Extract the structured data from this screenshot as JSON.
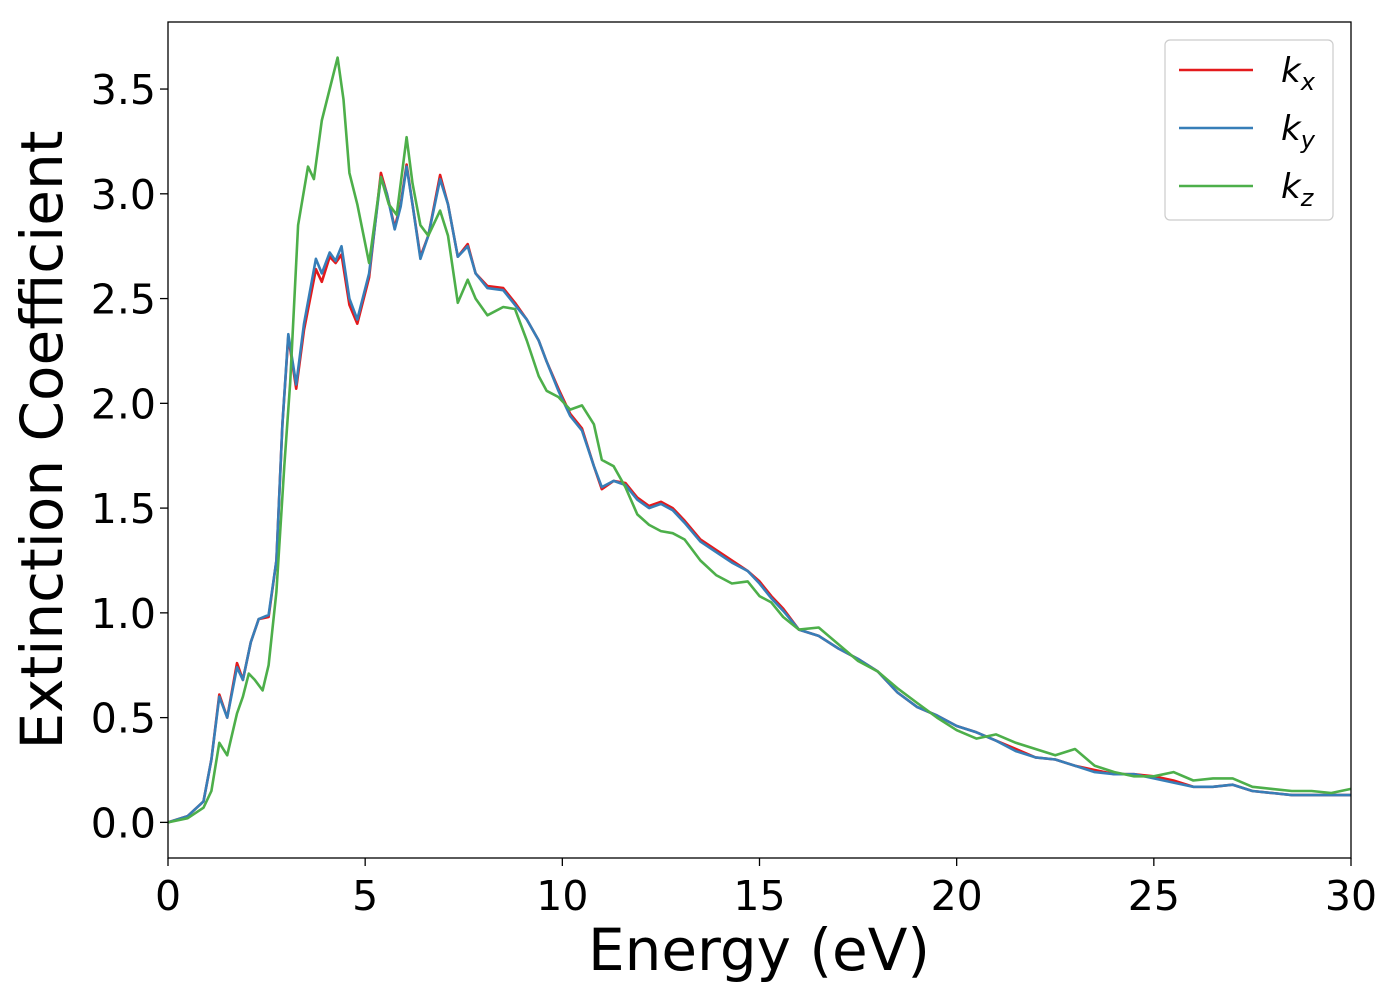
{
  "chart_data": {
    "type": "line",
    "xlabel": "Energy (eV)",
    "ylabel": "Extinction Coefficient",
    "xlim": [
      0,
      30
    ],
    "ylim": [
      -0.17,
      3.82
    ],
    "xticks": [
      0,
      5,
      10,
      15,
      20,
      25,
      30
    ],
    "yticks": [
      0.0,
      0.5,
      1.0,
      1.5,
      2.0,
      2.5,
      3.0,
      3.5
    ],
    "x_tick_labels": [
      "0",
      "5",
      "10",
      "15",
      "20",
      "25",
      "30"
    ],
    "y_tick_labels": [
      "0.0",
      "0.5",
      "1.0",
      "1.5",
      "2.0",
      "2.5",
      "3.0",
      "3.5"
    ],
    "grid": false,
    "legend_position": "top-right",
    "series": [
      {
        "name": "k_x",
        "label_base": "k",
        "label_sub": "x",
        "color": "#e41a1c",
        "points": [
          [
            0,
            0.0
          ],
          [
            0.5,
            0.03
          ],
          [
            0.9,
            0.1
          ],
          [
            1.1,
            0.3
          ],
          [
            1.3,
            0.61
          ],
          [
            1.5,
            0.5
          ],
          [
            1.75,
            0.76
          ],
          [
            1.9,
            0.68
          ],
          [
            2.1,
            0.86
          ],
          [
            2.3,
            0.97
          ],
          [
            2.55,
            0.98
          ],
          [
            2.75,
            1.25
          ],
          [
            2.9,
            1.9
          ],
          [
            3.05,
            2.32
          ],
          [
            3.25,
            2.07
          ],
          [
            3.45,
            2.35
          ],
          [
            3.75,
            2.64
          ],
          [
            3.9,
            2.58
          ],
          [
            4.1,
            2.7
          ],
          [
            4.25,
            2.67
          ],
          [
            4.4,
            2.71
          ],
          [
            4.6,
            2.47
          ],
          [
            4.8,
            2.38
          ],
          [
            5.1,
            2.6
          ],
          [
            5.4,
            3.1
          ],
          [
            5.55,
            3.0
          ],
          [
            5.75,
            2.84
          ],
          [
            5.9,
            2.95
          ],
          [
            6.05,
            3.14
          ],
          [
            6.2,
            2.95
          ],
          [
            6.4,
            2.7
          ],
          [
            6.6,
            2.8
          ],
          [
            6.9,
            3.09
          ],
          [
            7.1,
            2.95
          ],
          [
            7.35,
            2.7
          ],
          [
            7.6,
            2.76
          ],
          [
            7.8,
            2.62
          ],
          [
            8.1,
            2.56
          ],
          [
            8.5,
            2.55
          ],
          [
            8.8,
            2.48
          ],
          [
            9.1,
            2.4
          ],
          [
            9.4,
            2.3
          ],
          [
            9.6,
            2.2
          ],
          [
            9.9,
            2.07
          ],
          [
            10.2,
            1.95
          ],
          [
            10.5,
            1.88
          ],
          [
            10.8,
            1.7
          ],
          [
            11.0,
            1.59
          ],
          [
            11.3,
            1.63
          ],
          [
            11.6,
            1.62
          ],
          [
            11.9,
            1.55
          ],
          [
            12.2,
            1.51
          ],
          [
            12.5,
            1.53
          ],
          [
            12.8,
            1.5
          ],
          [
            13.1,
            1.44
          ],
          [
            13.5,
            1.35
          ],
          [
            13.9,
            1.3
          ],
          [
            14.3,
            1.25
          ],
          [
            14.7,
            1.2
          ],
          [
            15.0,
            1.15
          ],
          [
            15.3,
            1.08
          ],
          [
            15.6,
            1.02
          ],
          [
            16.0,
            0.92
          ],
          [
            16.5,
            0.89
          ],
          [
            17.0,
            0.83
          ],
          [
            17.5,
            0.78
          ],
          [
            18.0,
            0.72
          ],
          [
            18.5,
            0.62
          ],
          [
            19.0,
            0.55
          ],
          [
            19.5,
            0.51
          ],
          [
            20.0,
            0.46
          ],
          [
            20.5,
            0.43
          ],
          [
            21.0,
            0.39
          ],
          [
            21.5,
            0.35
          ],
          [
            22.0,
            0.31
          ],
          [
            22.5,
            0.3
          ],
          [
            23.0,
            0.27
          ],
          [
            23.5,
            0.25
          ],
          [
            24.0,
            0.23
          ],
          [
            24.5,
            0.23
          ],
          [
            25.0,
            0.22
          ],
          [
            25.5,
            0.2
          ],
          [
            26.0,
            0.17
          ],
          [
            26.5,
            0.17
          ],
          [
            27.0,
            0.18
          ],
          [
            27.5,
            0.15
          ],
          [
            28.0,
            0.14
          ],
          [
            28.5,
            0.13
          ],
          [
            29.0,
            0.13
          ],
          [
            29.5,
            0.13
          ],
          [
            30.0,
            0.13
          ]
        ]
      },
      {
        "name": "k_y",
        "label_base": "k",
        "label_sub": "y",
        "color": "#377eb8",
        "points": [
          [
            0,
            0.0
          ],
          [
            0.5,
            0.03
          ],
          [
            0.9,
            0.1
          ],
          [
            1.1,
            0.3
          ],
          [
            1.3,
            0.6
          ],
          [
            1.5,
            0.5
          ],
          [
            1.75,
            0.74
          ],
          [
            1.9,
            0.68
          ],
          [
            2.1,
            0.86
          ],
          [
            2.3,
            0.97
          ],
          [
            2.55,
            0.99
          ],
          [
            2.75,
            1.25
          ],
          [
            2.9,
            1.9
          ],
          [
            3.05,
            2.33
          ],
          [
            3.25,
            2.09
          ],
          [
            3.45,
            2.38
          ],
          [
            3.75,
            2.69
          ],
          [
            3.9,
            2.62
          ],
          [
            4.1,
            2.72
          ],
          [
            4.25,
            2.68
          ],
          [
            4.4,
            2.75
          ],
          [
            4.6,
            2.5
          ],
          [
            4.8,
            2.4
          ],
          [
            5.1,
            2.62
          ],
          [
            5.4,
            3.08
          ],
          [
            5.55,
            3.0
          ],
          [
            5.75,
            2.83
          ],
          [
            5.9,
            2.94
          ],
          [
            6.05,
            3.13
          ],
          [
            6.2,
            2.95
          ],
          [
            6.4,
            2.69
          ],
          [
            6.6,
            2.8
          ],
          [
            6.9,
            3.07
          ],
          [
            7.1,
            2.95
          ],
          [
            7.35,
            2.7
          ],
          [
            7.6,
            2.75
          ],
          [
            7.8,
            2.62
          ],
          [
            8.1,
            2.55
          ],
          [
            8.5,
            2.54
          ],
          [
            8.8,
            2.47
          ],
          [
            9.1,
            2.4
          ],
          [
            9.4,
            2.3
          ],
          [
            9.6,
            2.2
          ],
          [
            9.9,
            2.06
          ],
          [
            10.2,
            1.94
          ],
          [
            10.5,
            1.87
          ],
          [
            10.8,
            1.7
          ],
          [
            11.0,
            1.6
          ],
          [
            11.3,
            1.63
          ],
          [
            11.6,
            1.61
          ],
          [
            11.9,
            1.54
          ],
          [
            12.2,
            1.5
          ],
          [
            12.5,
            1.52
          ],
          [
            12.8,
            1.49
          ],
          [
            13.1,
            1.43
          ],
          [
            13.5,
            1.34
          ],
          [
            13.9,
            1.29
          ],
          [
            14.3,
            1.24
          ],
          [
            14.7,
            1.2
          ],
          [
            15.0,
            1.14
          ],
          [
            15.3,
            1.07
          ],
          [
            15.6,
            1.01
          ],
          [
            16.0,
            0.92
          ],
          [
            16.5,
            0.89
          ],
          [
            17.0,
            0.83
          ],
          [
            17.5,
            0.78
          ],
          [
            18.0,
            0.72
          ],
          [
            18.5,
            0.62
          ],
          [
            19.0,
            0.55
          ],
          [
            19.5,
            0.51
          ],
          [
            20.0,
            0.46
          ],
          [
            20.5,
            0.43
          ],
          [
            21.0,
            0.39
          ],
          [
            21.5,
            0.34
          ],
          [
            22.0,
            0.31
          ],
          [
            22.5,
            0.3
          ],
          [
            23.0,
            0.27
          ],
          [
            23.5,
            0.24
          ],
          [
            24.0,
            0.23
          ],
          [
            24.5,
            0.23
          ],
          [
            25.0,
            0.21
          ],
          [
            25.5,
            0.19
          ],
          [
            26.0,
            0.17
          ],
          [
            26.5,
            0.17
          ],
          [
            27.0,
            0.18
          ],
          [
            27.5,
            0.15
          ],
          [
            28.0,
            0.14
          ],
          [
            28.5,
            0.13
          ],
          [
            29.0,
            0.13
          ],
          [
            29.5,
            0.13
          ],
          [
            30.0,
            0.13
          ]
        ]
      },
      {
        "name": "k_z",
        "label_base": "k",
        "label_sub": "z",
        "color": "#4daf4a",
        "points": [
          [
            0,
            0.0
          ],
          [
            0.5,
            0.02
          ],
          [
            0.9,
            0.07
          ],
          [
            1.1,
            0.15
          ],
          [
            1.3,
            0.38
          ],
          [
            1.5,
            0.32
          ],
          [
            1.75,
            0.52
          ],
          [
            1.9,
            0.6
          ],
          [
            2.05,
            0.71
          ],
          [
            2.2,
            0.68
          ],
          [
            2.4,
            0.63
          ],
          [
            2.55,
            0.75
          ],
          [
            2.75,
            1.1
          ],
          [
            2.95,
            1.7
          ],
          [
            3.1,
            2.1
          ],
          [
            3.3,
            2.85
          ],
          [
            3.55,
            3.13
          ],
          [
            3.7,
            3.07
          ],
          [
            3.9,
            3.35
          ],
          [
            4.1,
            3.5
          ],
          [
            4.3,
            3.65
          ],
          [
            4.45,
            3.45
          ],
          [
            4.6,
            3.1
          ],
          [
            4.8,
            2.95
          ],
          [
            5.1,
            2.67
          ],
          [
            5.4,
            3.08
          ],
          [
            5.6,
            2.95
          ],
          [
            5.8,
            2.9
          ],
          [
            6.05,
            3.27
          ],
          [
            6.2,
            3.05
          ],
          [
            6.4,
            2.85
          ],
          [
            6.6,
            2.8
          ],
          [
            6.9,
            2.92
          ],
          [
            7.1,
            2.8
          ],
          [
            7.35,
            2.48
          ],
          [
            7.6,
            2.59
          ],
          [
            7.8,
            2.5
          ],
          [
            8.1,
            2.42
          ],
          [
            8.5,
            2.46
          ],
          [
            8.8,
            2.45
          ],
          [
            9.1,
            2.3
          ],
          [
            9.4,
            2.13
          ],
          [
            9.6,
            2.06
          ],
          [
            9.9,
            2.03
          ],
          [
            10.2,
            1.97
          ],
          [
            10.5,
            1.99
          ],
          [
            10.8,
            1.9
          ],
          [
            11.0,
            1.73
          ],
          [
            11.3,
            1.7
          ],
          [
            11.6,
            1.6
          ],
          [
            11.9,
            1.47
          ],
          [
            12.2,
            1.42
          ],
          [
            12.5,
            1.39
          ],
          [
            12.8,
            1.38
          ],
          [
            13.1,
            1.35
          ],
          [
            13.5,
            1.25
          ],
          [
            13.9,
            1.18
          ],
          [
            14.3,
            1.14
          ],
          [
            14.7,
            1.15
          ],
          [
            15.0,
            1.08
          ],
          [
            15.3,
            1.05
          ],
          [
            15.6,
            0.98
          ],
          [
            16.0,
            0.92
          ],
          [
            16.5,
            0.93
          ],
          [
            17.0,
            0.85
          ],
          [
            17.5,
            0.77
          ],
          [
            18.0,
            0.72
          ],
          [
            18.5,
            0.64
          ],
          [
            19.0,
            0.57
          ],
          [
            19.5,
            0.5
          ],
          [
            20.0,
            0.44
          ],
          [
            20.5,
            0.4
          ],
          [
            21.0,
            0.42
          ],
          [
            21.5,
            0.38
          ],
          [
            22.0,
            0.35
          ],
          [
            22.5,
            0.32
          ],
          [
            23.0,
            0.35
          ],
          [
            23.5,
            0.27
          ],
          [
            24.0,
            0.24
          ],
          [
            24.5,
            0.22
          ],
          [
            25.0,
            0.22
          ],
          [
            25.5,
            0.24
          ],
          [
            26.0,
            0.2
          ],
          [
            26.5,
            0.21
          ],
          [
            27.0,
            0.21
          ],
          [
            27.5,
            0.17
          ],
          [
            28.0,
            0.16
          ],
          [
            28.5,
            0.15
          ],
          [
            29.0,
            0.15
          ],
          [
            29.5,
            0.14
          ],
          [
            30.0,
            0.16
          ]
        ]
      }
    ]
  }
}
